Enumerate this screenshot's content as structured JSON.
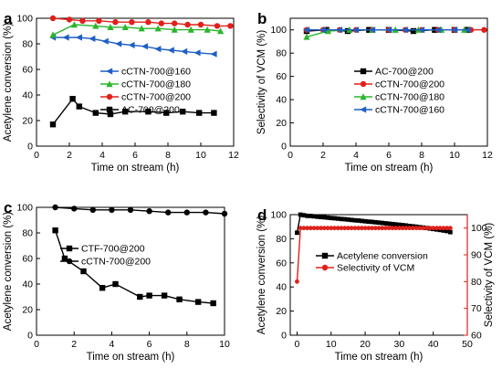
{
  "figure": {
    "panels": [
      "a",
      "b",
      "c",
      "d"
    ]
  },
  "chart_data": [
    {
      "panel": "a",
      "type": "line",
      "xlabel": "Time on stream (h)",
      "ylabel": "Acetylene conversion (%)",
      "xlim": [
        0,
        12
      ],
      "ylim": [
        0,
        100
      ],
      "xticks": [
        0,
        2,
        4,
        6,
        8,
        10,
        12
      ],
      "yticks": [
        0,
        20,
        40,
        60,
        80,
        100
      ],
      "grid": false,
      "legend_position": "right",
      "series": [
        {
          "name": "cCTN-700@160",
          "color": "#1f5fc4",
          "marker": "triangle-left",
          "x": [
            1.0,
            1.8,
            2.6,
            3.4,
            4.2,
            5.0,
            5.8,
            6.6,
            7.4,
            8.2,
            9.0,
            9.8,
            10.8
          ],
          "y": [
            85,
            85,
            85,
            84,
            82,
            80,
            79,
            78,
            76,
            75,
            74,
            73,
            72
          ]
        },
        {
          "name": "cCTN-700@180",
          "color": "#2bb52b",
          "marker": "triangle-up",
          "x": [
            1.0,
            2.3,
            3.6,
            4.5,
            5.4,
            6.4,
            7.4,
            8.4,
            9.4,
            10.4,
            11.2
          ],
          "y": [
            87,
            95,
            94,
            93,
            93,
            92,
            92,
            91,
            91,
            91,
            90
          ]
        },
        {
          "name": "cCTN-700@200",
          "color": "#e0201b",
          "marker": "circle",
          "x": [
            1.0,
            2.0,
            2.8,
            3.8,
            4.8,
            5.8,
            6.8,
            7.6,
            8.4,
            9.2,
            10.0,
            11.0,
            11.8
          ],
          "y": [
            100,
            99,
            98,
            98,
            97,
            97,
            97,
            96,
            96,
            95,
            95,
            94,
            94
          ]
        },
        {
          "name": "AC-700@200",
          "color": "#000000",
          "marker": "square",
          "x": [
            1.0,
            2.2,
            2.6,
            3.6,
            4.5,
            5.4,
            6.8,
            7.9,
            8.9,
            9.9,
            10.8
          ],
          "y": [
            17,
            37,
            31,
            26,
            25,
            27,
            27,
            26,
            27,
            26,
            26
          ]
        }
      ]
    },
    {
      "panel": "b",
      "type": "line",
      "xlabel": "Time on stream (h)",
      "ylabel": "Selectivity of VCM (%)",
      "xlim": [
        0,
        12
      ],
      "ylim": [
        0,
        110
      ],
      "xticks": [
        0,
        2,
        4,
        6,
        8,
        10,
        12
      ],
      "yticks": [
        0,
        20,
        40,
        60,
        80,
        100
      ],
      "grid": false,
      "legend_position": "right",
      "series": [
        {
          "name": "AC-700@200",
          "color": "#000000",
          "marker": "square",
          "x": [
            1.0,
            2.2,
            3.5,
            4.8,
            6.0,
            7.5,
            8.8,
            10.0,
            10.8
          ],
          "y": [
            99,
            100,
            99,
            100,
            100,
            99,
            100,
            100,
            100
          ]
        },
        {
          "name": "cCTN-700@200",
          "color": "#e0201b",
          "marker": "circle",
          "x": [
            1.0,
            2.0,
            3.0,
            4.0,
            5.0,
            6.0,
            7.0,
            8.0,
            9.0,
            10.0,
            11.0,
            11.8
          ],
          "y": [
            100,
            100,
            100,
            100,
            100,
            100,
            100,
            100,
            100,
            100,
            100,
            100
          ]
        },
        {
          "name": "cCTN-700@180",
          "color": "#2bb52b",
          "marker": "triangle-up",
          "x": [
            1.0,
            2.3,
            3.6,
            5.0,
            6.4,
            7.8,
            9.2,
            10.6
          ],
          "y": [
            94,
            99,
            100,
            100,
            100,
            100,
            100,
            100
          ]
        },
        {
          "name": "cCTN-700@160",
          "color": "#1f5fc4",
          "marker": "triangle-left",
          "x": [
            1.0,
            2.0,
            3.0,
            4.0,
            5.0,
            6.0,
            7.0,
            8.0,
            9.0,
            10.0,
            10.8
          ],
          "y": [
            100,
            100,
            100,
            100,
            100,
            100,
            100,
            100,
            100,
            100,
            100
          ]
        }
      ]
    },
    {
      "panel": "c",
      "type": "line",
      "xlabel": "Time on stream (h)",
      "ylabel": "Acetylene conversion (%)",
      "xlim": [
        0,
        10
      ],
      "ylim": [
        0,
        100
      ],
      "xticks": [
        0,
        2,
        4,
        6,
        8,
        10
      ],
      "yticks": [
        0,
        20,
        40,
        60,
        80,
        100
      ],
      "grid": false,
      "legend_position": "center",
      "series": [
        {
          "name": "CTF-700@200",
          "color": "#000000",
          "marker": "square",
          "x": [
            1.0,
            1.5,
            2.5,
            3.5,
            4.2,
            5.5,
            6.0,
            6.8,
            7.6,
            8.6,
            9.4
          ],
          "y": [
            82,
            60,
            50,
            37,
            40,
            30,
            31,
            31,
            28,
            26,
            25
          ]
        },
        {
          "name": "cCTN-700@200",
          "color": "#000000",
          "marker": "circle",
          "x": [
            1.0,
            2.0,
            3.0,
            4.0,
            5.0,
            6.0,
            7.0,
            8.0,
            9.0,
            10.0
          ],
          "y": [
            100,
            99,
            98,
            98,
            98,
            97,
            96,
            96,
            96,
            95
          ]
        }
      ]
    },
    {
      "panel": "d",
      "type": "line",
      "xlabel": "Time on stream (h)",
      "ylabel": "Acetylene conversion (%)",
      "y2label": "Selectivity of VCM (%)",
      "xlim": [
        -2,
        50
      ],
      "ylim": [
        0,
        100
      ],
      "y2lim": [
        60,
        105
      ],
      "xticks": [
        0,
        10,
        20,
        30,
        40,
        50
      ],
      "yticks": [
        0,
        20,
        40,
        60,
        80,
        100
      ],
      "y2ticks": [
        60,
        70,
        80,
        90,
        100
      ],
      "grid": false,
      "legend_position": "center",
      "series": [
        {
          "name": "Acetylene conversion",
          "color": "#000000",
          "marker": "square",
          "axis": "left",
          "x": [
            0,
            1,
            2,
            3,
            4,
            5,
            6,
            7,
            8,
            9,
            10,
            11,
            12,
            13,
            14,
            15,
            16,
            17,
            18,
            19,
            20,
            21,
            22,
            23,
            24,
            25,
            26,
            27,
            28,
            29,
            30,
            31,
            32,
            33,
            34,
            35,
            36,
            37,
            38,
            39,
            40,
            41,
            42,
            43,
            44,
            45
          ],
          "y": [
            85,
            100,
            99.5,
            99,
            98.9,
            98.6,
            98.3,
            98,
            97.8,
            97.5,
            97.2,
            97,
            96.7,
            96.4,
            96.2,
            95.9,
            95.6,
            95.3,
            95.1,
            94.8,
            94.5,
            94.2,
            94,
            93.7,
            93.4,
            93.1,
            92.8,
            92.5,
            92.2,
            91.9,
            91.6,
            91.3,
            91,
            90.6,
            90.3,
            90,
            89.6,
            89.3,
            88.9,
            88.5,
            88.1,
            87.7,
            87.3,
            86.8,
            86.4,
            85.5
          ]
        },
        {
          "name": "Selectivity of VCM",
          "color": "#e0201b",
          "marker": "circle",
          "axis": "right",
          "x": [
            0,
            1,
            2,
            3,
            4,
            5,
            6,
            7,
            8,
            9,
            10,
            11,
            12,
            13,
            14,
            15,
            16,
            17,
            18,
            19,
            20,
            21,
            22,
            23,
            24,
            25,
            26,
            27,
            28,
            29,
            30,
            31,
            32,
            33,
            34,
            35,
            36,
            37,
            38,
            39,
            40,
            41,
            42,
            43,
            44,
            45
          ],
          "y": [
            80,
            100,
            100,
            100,
            100,
            100,
            100,
            100,
            100,
            100,
            100,
            100,
            100,
            100,
            100,
            100,
            100,
            100,
            100,
            100,
            100,
            100,
            100,
            100,
            100,
            100,
            100,
            100,
            100,
            100,
            100,
            100,
            100,
            100,
            100,
            100,
            100,
            100,
            100,
            100,
            100,
            100,
            100,
            100,
            100,
            100
          ]
        }
      ]
    }
  ]
}
